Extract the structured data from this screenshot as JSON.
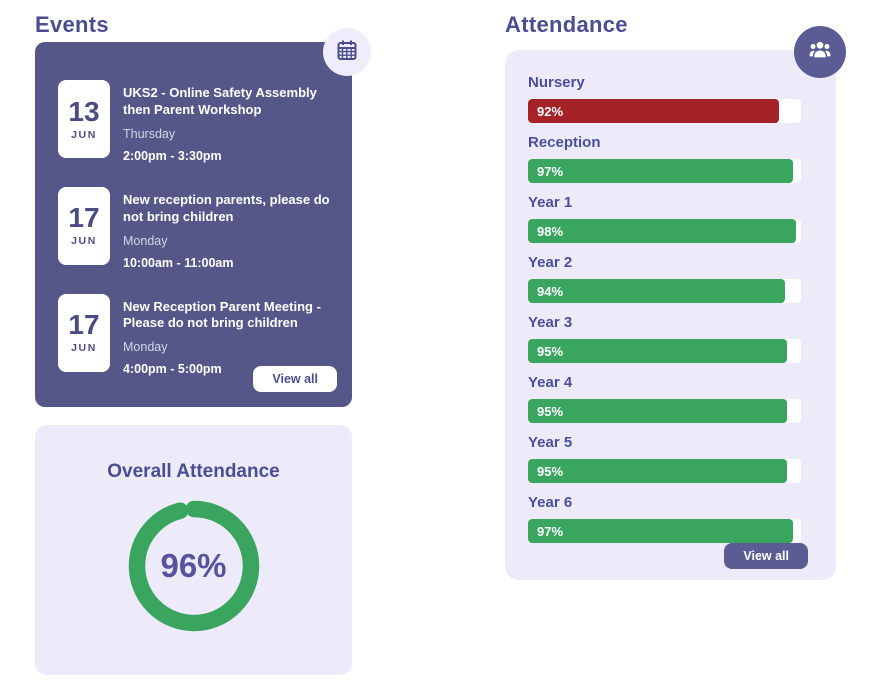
{
  "colors": {
    "header_purple": "#4b4d92",
    "card_purple": "#565789",
    "lavender": "#edebfa",
    "badge_lavender": "#efedfc",
    "dark_button": "#5b5c94",
    "date_text": "#4b4c80",
    "green": "#3aa55f",
    "red": "#a52226",
    "label_purple": "#4c4e99",
    "donut_text": "#5753a0"
  },
  "events": {
    "title": "Events",
    "icon": "calendar-icon",
    "view_all_label": "View all",
    "items": [
      {
        "day_num": "13",
        "month": "JUN",
        "title": "UKS2 - Online Safety Assembly then Parent Workshop",
        "weekday": "Thursday",
        "time": "2:00pm - 3:30pm"
      },
      {
        "day_num": "17",
        "month": "JUN",
        "title": "New reception parents, please do not bring children",
        "weekday": "Monday",
        "time": "10:00am - 11:00am"
      },
      {
        "day_num": "17",
        "month": "JUN",
        "title": "New Reception Parent Meeting - Please do not bring children",
        "weekday": "Monday",
        "time": "4:00pm - 5:00pm"
      }
    ]
  },
  "overall_attendance": {
    "title": "Overall Attendance",
    "percent": 96,
    "value_label": "96%"
  },
  "attendance": {
    "title": "Attendance",
    "icon": "people-icon",
    "view_all_label": "View all",
    "rows": [
      {
        "label": "Nursery",
        "percent": 92,
        "value_label": "92%",
        "color": "#a52226"
      },
      {
        "label": "Reception",
        "percent": 97,
        "value_label": "97%",
        "color": "#3aa55f"
      },
      {
        "label": "Year 1",
        "percent": 98,
        "value_label": "98%",
        "color": "#3aa55f"
      },
      {
        "label": "Year 2",
        "percent": 94,
        "value_label": "94%",
        "color": "#3aa55f"
      },
      {
        "label": "Year 3",
        "percent": 95,
        "value_label": "95%",
        "color": "#3aa55f"
      },
      {
        "label": "Year 4",
        "percent": 95,
        "value_label": "95%",
        "color": "#3aa55f"
      },
      {
        "label": "Year 5",
        "percent": 95,
        "value_label": "95%",
        "color": "#3aa55f"
      },
      {
        "label": "Year 6",
        "percent": 97,
        "value_label": "97%",
        "color": "#3aa55f"
      }
    ]
  },
  "chart_data": [
    {
      "type": "bar",
      "title": "Attendance",
      "orientation": "horizontal",
      "categories": [
        "Nursery",
        "Reception",
        "Year 1",
        "Year 2",
        "Year 3",
        "Year 4",
        "Year 5",
        "Year 6"
      ],
      "values": [
        92,
        97,
        98,
        94,
        95,
        95,
        95,
        97
      ],
      "unit": "%",
      "xlim": [
        0,
        100
      ],
      "bar_colors": [
        "#a52226",
        "#3aa55f",
        "#3aa55f",
        "#3aa55f",
        "#3aa55f",
        "#3aa55f",
        "#3aa55f",
        "#3aa55f"
      ]
    },
    {
      "type": "pie",
      "title": "Overall Attendance",
      "categories": [
        "Attendance",
        "Remainder"
      ],
      "values": [
        96,
        4
      ],
      "unit": "%",
      "center_label": "96%",
      "ring_color": "#3aa55f"
    }
  ]
}
